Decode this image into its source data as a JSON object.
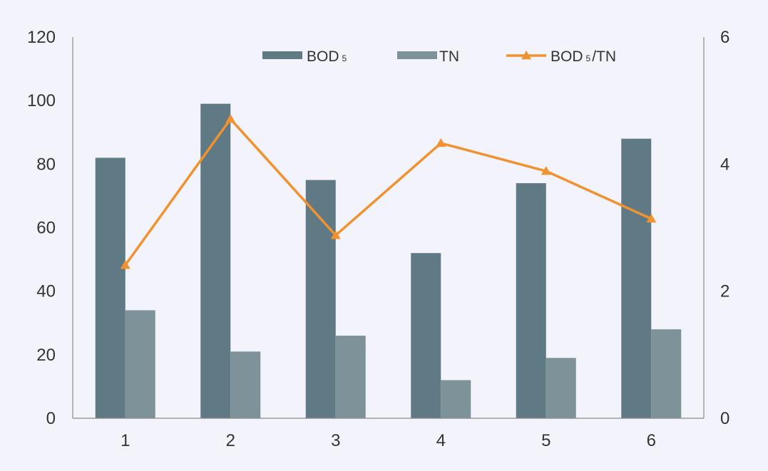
{
  "colors": {
    "background": "#f3f3fb",
    "bod5": "#5f7985",
    "tn": "#7d9299",
    "ratio": "#f0922f",
    "axis": "#8a8a8a",
    "text": "#333333"
  },
  "legend": {
    "placement": "top-center",
    "items": [
      {
        "key": "bod5",
        "main": "BOD",
        "sub": "5",
        "rest": "",
        "marker": "rect"
      },
      {
        "key": "tn",
        "main": "TN",
        "sub": "",
        "rest": "",
        "marker": "rect"
      },
      {
        "key": "ratio",
        "main": "BOD",
        "sub": "5",
        "rest": "/TN",
        "marker": "line-triangle"
      }
    ]
  },
  "chart_data": {
    "type": "bar",
    "categories": [
      "1",
      "2",
      "3",
      "4",
      "5",
      "6"
    ],
    "series": [
      {
        "name": "BOD5",
        "type": "bar",
        "axis": "left",
        "values": [
          82,
          99,
          75,
          52,
          74,
          88
        ]
      },
      {
        "name": "TN",
        "type": "bar",
        "axis": "left",
        "values": [
          34,
          21,
          26,
          12,
          19,
          28
        ]
      },
      {
        "name": "BOD5/TN",
        "type": "line",
        "marker": "triangle",
        "axis": "right",
        "values": [
          2.41,
          4.71,
          2.88,
          4.33,
          3.89,
          3.14
        ]
      }
    ],
    "y_left": {
      "ylim": [
        0,
        120
      ],
      "ticks": [
        "0",
        "20",
        "40",
        "60",
        "80",
        "100",
        "120"
      ]
    },
    "y_right": {
      "ylim": [
        0,
        6
      ],
      "ticks": [
        "0",
        "2",
        "4",
        "6"
      ]
    },
    "grid": false,
    "title": "",
    "xlabel": "",
    "ylabel": ""
  }
}
